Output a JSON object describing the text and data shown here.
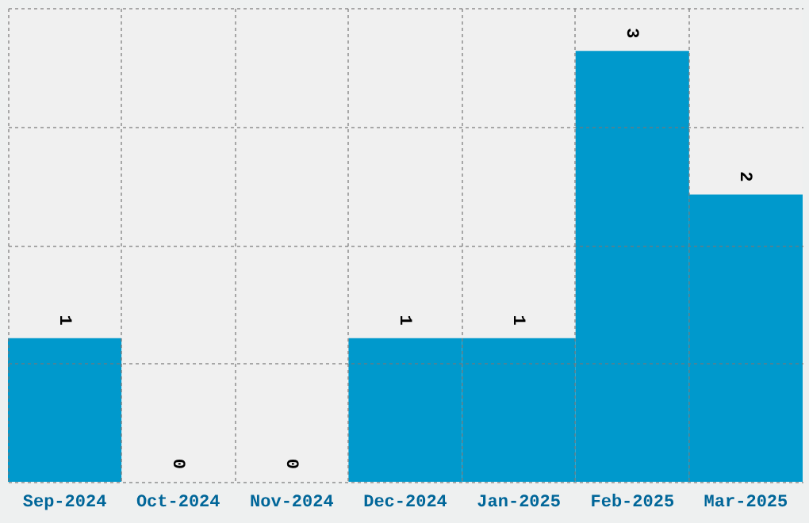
{
  "chart_data": {
    "type": "bar",
    "categories": [
      "Sep-2024",
      "Oct-2024",
      "Nov-2024",
      "Dec-2024",
      "Jan-2025",
      "Feb-2025",
      "Mar-2025"
    ],
    "values": [
      1,
      0,
      0,
      1,
      1,
      3,
      2
    ],
    "color": "#0099cc",
    "ylim": [
      0,
      3.3
    ],
    "yticks": [
      {
        "value": 0,
        "label": null
      },
      {
        "value": 0.825,
        "label": null
      },
      {
        "value": 1.65,
        "label": null
      },
      {
        "value": 2.475,
        "label": null
      },
      {
        "value": 3.3,
        "label": null
      }
    ],
    "grid": true,
    "tick_labels": "x",
    "data_labels": true
  }
}
